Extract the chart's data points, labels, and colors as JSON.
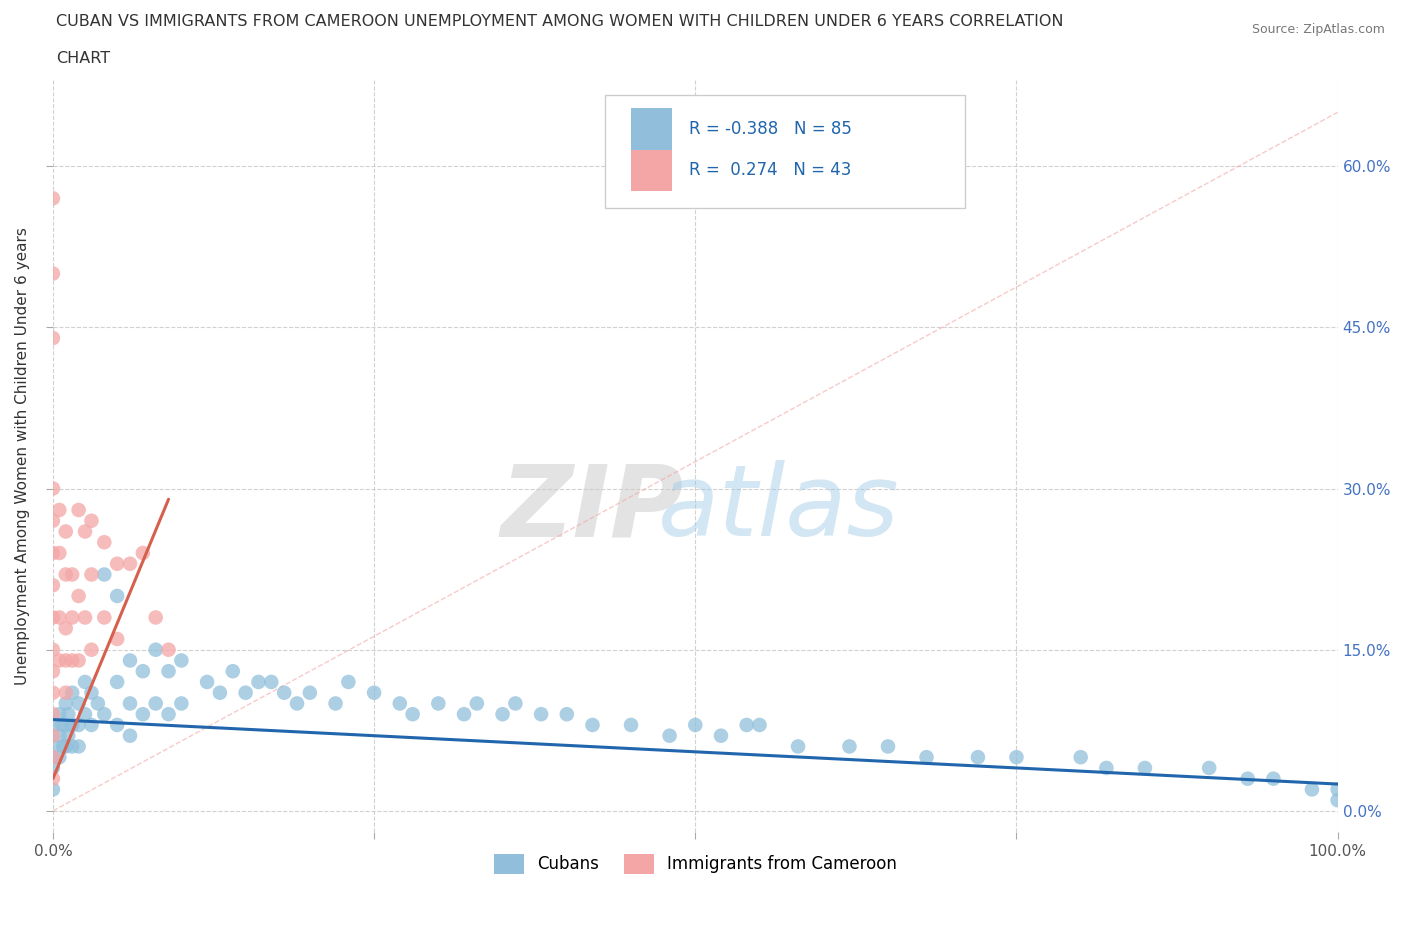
{
  "title_line1": "CUBAN VS IMMIGRANTS FROM CAMEROON UNEMPLOYMENT AMONG WOMEN WITH CHILDREN UNDER 6 YEARS CORRELATION",
  "title_line2": "CHART",
  "source": "Source: ZipAtlas.com",
  "ylabel": "Unemployment Among Women with Children Under 6 years",
  "xlim": [
    0.0,
    1.0
  ],
  "ylim": [
    -0.02,
    0.68
  ],
  "yticks": [
    0.0,
    0.15,
    0.3,
    0.45,
    0.6
  ],
  "ytick_labels": [
    "0.0%",
    "15.0%",
    "30.0%",
    "45.0%",
    "60.0%"
  ],
  "xticks": [
    0.0,
    0.25,
    0.5,
    0.75,
    1.0
  ],
  "xtick_labels": [
    "0.0%",
    "",
    "",
    "",
    "100.0%"
  ],
  "cubans_R": -0.388,
  "cubans_N": 85,
  "cameroon_R": 0.274,
  "cameroon_N": 43,
  "cubans_color": "#91bfdb",
  "cameroon_color": "#f4a6a6",
  "cubans_line_color": "#2166ac",
  "cameroon_line_color": "#d6604d",
  "cameroon_dash_color": "#f4a6a6",
  "background_color": "#ffffff",
  "grid_color": "#cccccc",
  "legend_labels": [
    "Cubans",
    "Immigrants from Cameroon"
  ],
  "cubans_x": [
    0.0,
    0.0,
    0.0,
    0.0,
    0.0,
    0.005,
    0.005,
    0.005,
    0.007,
    0.008,
    0.01,
    0.01,
    0.01,
    0.012,
    0.012,
    0.015,
    0.015,
    0.015,
    0.02,
    0.02,
    0.02,
    0.025,
    0.025,
    0.03,
    0.03,
    0.035,
    0.04,
    0.04,
    0.05,
    0.05,
    0.05,
    0.06,
    0.06,
    0.06,
    0.07,
    0.07,
    0.08,
    0.08,
    0.09,
    0.09,
    0.1,
    0.1,
    0.12,
    0.13,
    0.14,
    0.15,
    0.16,
    0.17,
    0.18,
    0.19,
    0.2,
    0.22,
    0.23,
    0.25,
    0.27,
    0.28,
    0.3,
    0.32,
    0.33,
    0.35,
    0.36,
    0.38,
    0.4,
    0.42,
    0.45,
    0.48,
    0.5,
    0.52,
    0.54,
    0.55,
    0.58,
    0.62,
    0.65,
    0.68,
    0.72,
    0.75,
    0.8,
    0.82,
    0.85,
    0.9,
    0.93,
    0.95,
    0.98,
    1.0,
    1.0
  ],
  "cubans_y": [
    0.08,
    0.06,
    0.05,
    0.04,
    0.02,
    0.09,
    0.07,
    0.05,
    0.08,
    0.06,
    0.1,
    0.08,
    0.06,
    0.09,
    0.07,
    0.11,
    0.08,
    0.06,
    0.1,
    0.08,
    0.06,
    0.12,
    0.09,
    0.11,
    0.08,
    0.1,
    0.22,
    0.09,
    0.2,
    0.12,
    0.08,
    0.14,
    0.1,
    0.07,
    0.13,
    0.09,
    0.15,
    0.1,
    0.13,
    0.09,
    0.14,
    0.1,
    0.12,
    0.11,
    0.13,
    0.11,
    0.12,
    0.12,
    0.11,
    0.1,
    0.11,
    0.1,
    0.12,
    0.11,
    0.1,
    0.09,
    0.1,
    0.09,
    0.1,
    0.09,
    0.1,
    0.09,
    0.09,
    0.08,
    0.08,
    0.07,
    0.08,
    0.07,
    0.08,
    0.08,
    0.06,
    0.06,
    0.06,
    0.05,
    0.05,
    0.05,
    0.05,
    0.04,
    0.04,
    0.04,
    0.03,
    0.03,
    0.02,
    0.02,
    0.01
  ],
  "cameroon_x": [
    0.0,
    0.0,
    0.0,
    0.0,
    0.0,
    0.0,
    0.0,
    0.0,
    0.0,
    0.0,
    0.0,
    0.0,
    0.0,
    0.0,
    0.0,
    0.005,
    0.005,
    0.005,
    0.005,
    0.01,
    0.01,
    0.01,
    0.01,
    0.01,
    0.015,
    0.015,
    0.015,
    0.02,
    0.02,
    0.02,
    0.025,
    0.025,
    0.03,
    0.03,
    0.03,
    0.04,
    0.04,
    0.05,
    0.05,
    0.06,
    0.07,
    0.08,
    0.09
  ],
  "cameroon_y": [
    0.57,
    0.5,
    0.44,
    0.3,
    0.27,
    0.24,
    0.21,
    0.18,
    0.15,
    0.13,
    0.11,
    0.09,
    0.07,
    0.05,
    0.03,
    0.28,
    0.24,
    0.18,
    0.14,
    0.26,
    0.22,
    0.17,
    0.14,
    0.11,
    0.22,
    0.18,
    0.14,
    0.28,
    0.2,
    0.14,
    0.26,
    0.18,
    0.27,
    0.22,
    0.15,
    0.25,
    0.18,
    0.23,
    0.16,
    0.23,
    0.24,
    0.18,
    0.15
  ],
  "cubans_trendline_x": [
    0.0,
    1.0
  ],
  "cubans_trendline_y": [
    0.085,
    0.025
  ],
  "cameroon_trendline_x": [
    0.0,
    0.09
  ],
  "cameroon_trendline_y": [
    0.03,
    0.29
  ],
  "diag_line_x": [
    0.0,
    1.0
  ],
  "diag_line_y": [
    0.0,
    0.65
  ]
}
